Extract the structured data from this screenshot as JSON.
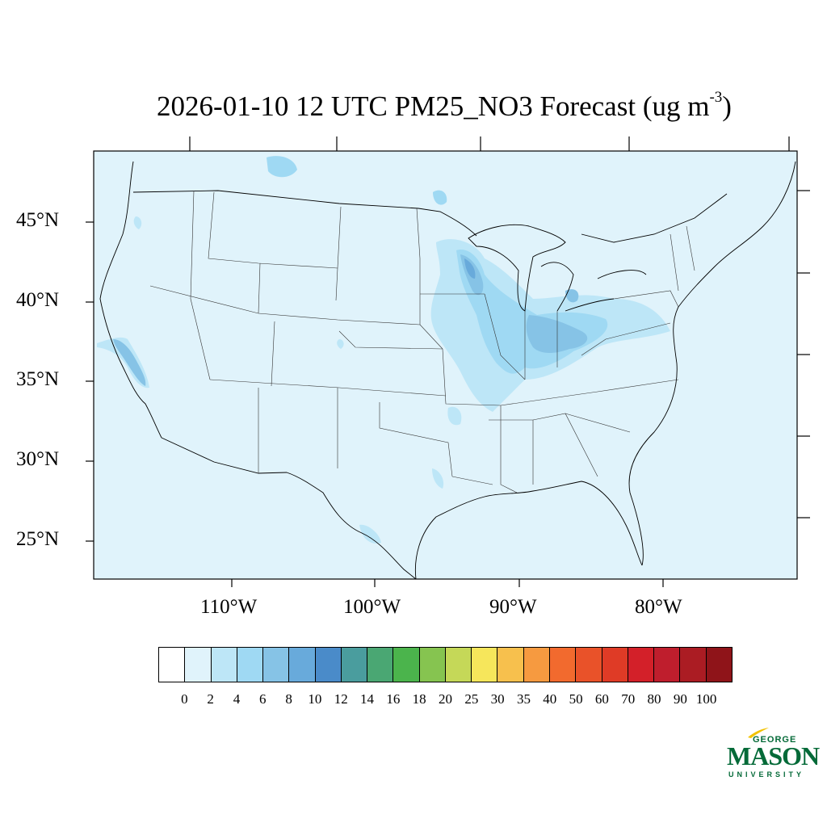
{
  "title": {
    "main": "2026-01-10 12 UTC PM25_NO3 Forecast (ug m",
    "superscript": "-3",
    "close": ")"
  },
  "lat_labels": [
    "45°N",
    "40°N",
    "35°N",
    "30°N",
    "25°N"
  ],
  "lon_labels": [
    "110°W",
    "100°W",
    "90°W",
    "80°W"
  ],
  "colorbar": {
    "colors": [
      "#ffffff",
      "#e0f3fb",
      "#bde6f7",
      "#9fd9f3",
      "#86c3e6",
      "#68aadb",
      "#4a8bc9",
      "#4a9d9e",
      "#4aa773",
      "#4bb44c",
      "#86c450",
      "#c5d858",
      "#f6e65b",
      "#f7c04d",
      "#f69a40",
      "#f26a2e",
      "#e95229",
      "#df3b26",
      "#d32029",
      "#bf1e2d",
      "#ab1c23",
      "#8f1419"
    ],
    "labels": [
      "0",
      "2",
      "4",
      "6",
      "8",
      "10",
      "12",
      "14",
      "16",
      "18",
      "20",
      "25",
      "30",
      "35",
      "40",
      "50",
      "60",
      "70",
      "80",
      "90",
      "100"
    ]
  },
  "logo": {
    "top": "GEORGE",
    "main": "MASON",
    "bottom": "UNIVERSITY",
    "color": "#046A38",
    "accent": "#F2C200"
  },
  "map": {
    "background_color": "#e0f3fb",
    "light_color": "#bde6f7",
    "mid_color": "#9fd9f3",
    "dark_color": "#86c3e6",
    "darker_color": "#68aadb"
  }
}
